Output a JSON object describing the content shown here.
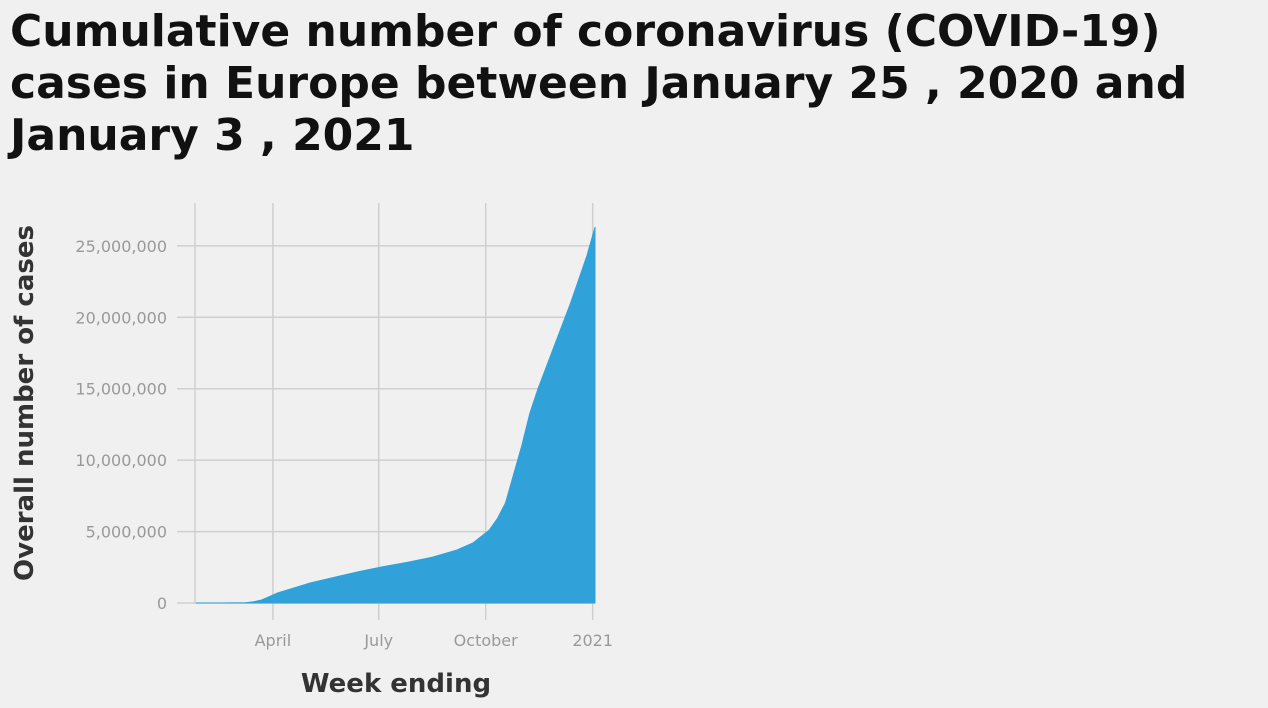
{
  "chart_data": {
    "type": "area",
    "title": "Cumulative number of coronavirus (COVID-19) cases in Europe between January 25 , 2020 and January 3 , 2021",
    "xlabel": "Week ending",
    "ylabel": "Overall number of cases",
    "x_ticks": [
      {
        "label": "April",
        "date": "2020-04-01"
      },
      {
        "label": "July",
        "date": "2020-07-01"
      },
      {
        "label": "October",
        "date": "2020-10-01"
      },
      {
        "label": "2021",
        "date": "2021-01-01"
      }
    ],
    "y_ticks": [
      {
        "label": "0",
        "value": 0
      },
      {
        "label": "5,000,000",
        "value": 5000000
      },
      {
        "label": "10,000,000",
        "value": 10000000
      },
      {
        "label": "15,000,000",
        "value": 15000000
      },
      {
        "label": "20,000,000",
        "value": 20000000
      },
      {
        "label": "25,000,000",
        "value": 25000000
      }
    ],
    "xlim": [
      "2020-01-25",
      "2021-01-03"
    ],
    "ylim": [
      0,
      28000000
    ],
    "grid": true,
    "color": "#31a2d9",
    "x": [
      "2020-01-26",
      "2020-02-16",
      "2020-03-08",
      "2020-03-15",
      "2020-03-22",
      "2020-03-29",
      "2020-04-05",
      "2020-04-19",
      "2020-05-03",
      "2020-05-24",
      "2020-06-14",
      "2020-07-05",
      "2020-07-26",
      "2020-08-16",
      "2020-09-06",
      "2020-09-20",
      "2020-10-04",
      "2020-10-11",
      "2020-10-18",
      "2020-10-25",
      "2020-11-01",
      "2020-11-08",
      "2020-11-15",
      "2020-11-29",
      "2020-12-13",
      "2020-12-27",
      "2021-01-03"
    ],
    "y": [
      0,
      100,
      20000,
      80000,
      200000,
      450000,
      700000,
      1050000,
      1400000,
      1800000,
      2200000,
      2550000,
      2850000,
      3200000,
      3700000,
      4200000,
      5100000,
      5900000,
      7000000,
      9000000,
      11000000,
      13300000,
      15000000,
      18000000,
      21000000,
      24300000,
      26300000
    ]
  }
}
